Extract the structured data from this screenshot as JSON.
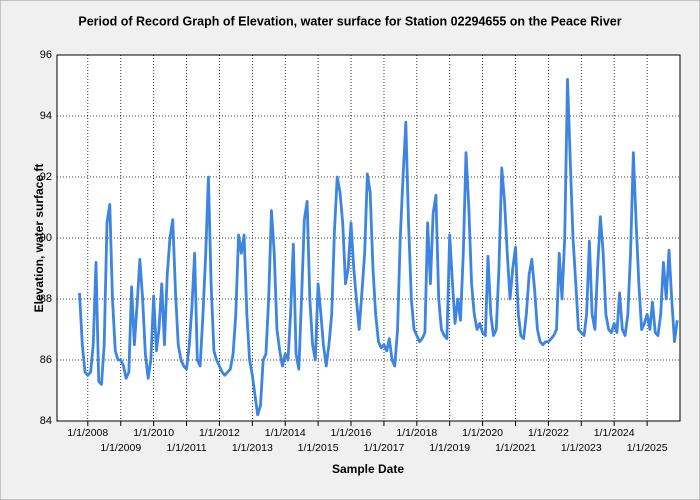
{
  "chart_data": {
    "type": "line",
    "title": "Period of Record Graph of Elevation, water surface for Station 02294655 on the Peace River",
    "xlabel": "Sample Date",
    "ylabel": "Elevation, water surface ft",
    "color": "#3d85e0",
    "grid": true,
    "ylim": [
      84,
      96
    ],
    "yticks": [
      84,
      86,
      88,
      90,
      92,
      94,
      96
    ],
    "xlim": [
      "2007-01-24",
      "2026-01-01"
    ],
    "xticks": [
      {
        "value": "2008-01-01",
        "label": "1/1/2008"
      },
      {
        "value": "2009-01-01",
        "label": "1/1/2009"
      },
      {
        "value": "2010-01-01",
        "label": "1/1/2010"
      },
      {
        "value": "2011-01-01",
        "label": "1/1/2011"
      },
      {
        "value": "2012-01-01",
        "label": "1/1/2012"
      },
      {
        "value": "2013-01-01",
        "label": "1/1/2013"
      },
      {
        "value": "2014-01-01",
        "label": "1/1/2014"
      },
      {
        "value": "2015-01-01",
        "label": "1/1/2015"
      },
      {
        "value": "2016-01-01",
        "label": "1/1/2016"
      },
      {
        "value": "2017-01-01",
        "label": "1/1/2017"
      },
      {
        "value": "2018-01-01",
        "label": "1/1/2018"
      },
      {
        "value": "2019-01-01",
        "label": "1/1/2019"
      },
      {
        "value": "2020-01-01",
        "label": "1/1/2020"
      },
      {
        "value": "2021-01-01",
        "label": "1/1/2021"
      },
      {
        "value": "2022-01-01",
        "label": "1/1/2022"
      },
      {
        "value": "2023-01-01",
        "label": "1/1/2023"
      },
      {
        "value": "2024-01-01",
        "label": "1/1/2024"
      },
      {
        "value": "2025-01-01",
        "label": "1/1/2025"
      }
    ],
    "x": [
      "2007-10-01",
      "2007-11-01",
      "2007-12-01",
      "2008-01-01",
      "2008-02-01",
      "2008-03-01",
      "2008-04-01",
      "2008-05-01",
      "2008-06-01",
      "2008-07-01",
      "2008-08-01",
      "2008-09-01",
      "2008-10-01",
      "2008-11-01",
      "2008-12-01",
      "2009-01-01",
      "2009-02-01",
      "2009-03-01",
      "2009-04-01",
      "2009-05-01",
      "2009-06-01",
      "2009-07-01",
      "2009-08-01",
      "2009-09-01",
      "2009-10-01",
      "2009-11-01",
      "2009-12-01",
      "2010-01-01",
      "2010-02-01",
      "2010-03-01",
      "2010-04-01",
      "2010-05-01",
      "2010-06-01",
      "2010-07-01",
      "2010-08-01",
      "2010-09-01",
      "2010-10-01",
      "2010-11-01",
      "2010-12-01",
      "2011-01-01",
      "2011-02-01",
      "2011-03-01",
      "2011-04-01",
      "2011-05-01",
      "2011-06-01",
      "2011-07-01",
      "2011-08-01",
      "2011-09-01",
      "2011-10-01",
      "2011-11-01",
      "2011-12-01",
      "2012-01-01",
      "2012-02-01",
      "2012-03-01",
      "2012-04-01",
      "2012-05-01",
      "2012-06-01",
      "2012-07-01",
      "2012-08-01",
      "2012-09-01",
      "2012-10-01",
      "2012-11-01",
      "2012-12-01",
      "2013-01-01",
      "2013-02-01",
      "2013-03-01",
      "2013-04-01",
      "2013-05-01",
      "2013-06-01",
      "2013-07-01",
      "2013-08-01",
      "2013-09-01",
      "2013-10-01",
      "2013-11-01",
      "2013-12-01",
      "2014-01-01",
      "2014-02-01",
      "2014-03-01",
      "2014-04-01",
      "2014-05-01",
      "2014-06-01",
      "2014-07-01",
      "2014-08-01",
      "2014-09-01",
      "2014-10-01",
      "2014-11-01",
      "2014-12-01",
      "2015-01-01",
      "2015-02-01",
      "2015-03-01",
      "2015-04-01",
      "2015-05-01",
      "2015-06-01",
      "2015-07-01",
      "2015-08-01",
      "2015-09-01",
      "2015-10-01",
      "2015-11-01",
      "2015-12-01",
      "2016-01-01",
      "2016-02-01",
      "2016-03-01",
      "2016-04-01",
      "2016-05-01",
      "2016-06-01",
      "2016-07-01",
      "2016-08-01",
      "2016-09-01",
      "2016-10-01",
      "2016-11-01",
      "2016-12-01",
      "2017-01-01",
      "2017-02-01",
      "2017-03-01",
      "2017-04-01",
      "2017-05-01",
      "2017-06-01",
      "2017-07-01",
      "2017-08-01",
      "2017-09-01",
      "2017-10-01",
      "2017-11-01",
      "2017-12-01",
      "2018-01-01",
      "2018-02-01",
      "2018-03-01",
      "2018-04-01",
      "2018-05-01",
      "2018-06-01",
      "2018-07-01",
      "2018-08-01",
      "2018-09-01",
      "2018-10-01",
      "2018-11-01",
      "2018-12-01",
      "2019-01-01",
      "2019-02-01",
      "2019-03-01",
      "2019-04-01",
      "2019-05-01",
      "2019-06-01",
      "2019-07-01",
      "2019-08-01",
      "2019-09-01",
      "2019-10-01",
      "2019-11-01",
      "2019-12-01",
      "2020-01-01",
      "2020-02-01",
      "2020-03-01",
      "2020-04-01",
      "2020-05-01",
      "2020-06-01",
      "2020-07-01",
      "2020-08-01",
      "2020-09-01",
      "2020-10-01",
      "2020-11-01",
      "2020-12-01",
      "2021-01-01",
      "2021-02-01",
      "2021-03-01",
      "2021-04-01",
      "2021-05-01",
      "2021-06-01",
      "2021-07-01",
      "2021-08-01",
      "2021-09-01",
      "2021-10-01",
      "2021-11-01",
      "2021-12-01",
      "2022-01-01",
      "2022-02-01",
      "2022-03-01",
      "2022-04-01",
      "2022-05-01",
      "2022-06-01",
      "2022-07-01",
      "2022-08-01",
      "2022-09-01",
      "2022-10-01",
      "2022-11-01",
      "2022-12-01",
      "2023-01-01",
      "2023-02-01",
      "2023-03-01",
      "2023-04-01",
      "2023-05-01",
      "2023-06-01",
      "2023-07-01",
      "2023-08-01",
      "2023-09-01",
      "2023-10-01",
      "2023-11-01",
      "2023-12-01",
      "2024-01-01",
      "2024-02-01",
      "2024-03-01",
      "2024-04-01",
      "2024-05-01",
      "2024-06-01",
      "2024-07-01",
      "2024-08-01",
      "2024-09-01",
      "2024-10-01",
      "2024-11-01",
      "2024-12-01",
      "2025-01-01",
      "2025-02-01",
      "2025-03-01",
      "2025-04-01",
      "2025-05-01",
      "2025-06-01",
      "2025-07-01",
      "2025-08-01",
      "2025-09-01",
      "2025-10-01",
      "2025-11-01",
      "2025-12-01"
    ],
    "values": [
      88.2,
      86.5,
      85.6,
      85.5,
      85.6,
      86.5,
      89.2,
      85.3,
      85.2,
      86.5,
      90.5,
      91.1,
      88,
      86.3,
      86,
      86,
      85.8,
      85.4,
      85.6,
      88.4,
      86.5,
      87.8,
      89.3,
      88,
      86.2,
      85.4,
      86,
      88.1,
      86.3,
      87,
      88.5,
      86.5,
      88.8,
      90,
      90.6,
      88.2,
      86.5,
      86,
      85.8,
      85.7,
      86.5,
      87.7,
      89.5,
      86,
      85.8,
      87.4,
      89.4,
      92,
      88.5,
      86.3,
      86,
      85.8,
      85.6,
      85.5,
      85.6,
      85.7,
      86.2,
      87.5,
      90.1,
      89.5,
      90.1,
      87.5,
      86,
      85.5,
      84.8,
      84.2,
      84.5,
      86,
      86.2,
      88,
      90.9,
      89.5,
      87,
      86.3,
      85.8,
      86.2,
      86,
      87.5,
      89.8,
      86.2,
      85.7,
      88,
      90.6,
      91.2,
      88,
      86.5,
      86,
      88.5,
      87.5,
      86.5,
      85.8,
      86.5,
      87.5,
      90.2,
      92,
      91.5,
      90.5,
      88.5,
      89,
      90.5,
      89,
      88,
      87,
      88.2,
      89.5,
      92.1,
      91.5,
      89,
      87.5,
      86.6,
      86.4,
      86.5,
      86.3,
      86.7,
      86,
      85.8,
      87,
      90,
      92,
      93.8,
      90.5,
      88,
      87,
      86.8,
      86.6,
      86.7,
      86.9,
      90.5,
      88.5,
      90.8,
      91.4,
      88,
      87,
      86.8,
      86.7,
      90.1,
      88.5,
      87.2,
      88,
      87.3,
      89.5,
      92.8,
      91,
      88.5,
      87.5,
      87,
      87.2,
      86.9,
      86.8,
      89.4,
      87.5,
      86.8,
      87,
      89,
      92.3,
      91.2,
      89.5,
      88,
      89,
      89.7,
      87.5,
      86.8,
      86.7,
      87.5,
      88.8,
      89.3,
      88.3,
      87,
      86.6,
      86.5,
      86.6,
      86.6,
      86.7,
      86.8,
      87,
      89.5,
      88,
      90,
      95.2,
      92.5,
      90,
      88.5,
      87,
      86.9,
      86.8,
      87.5,
      89.9,
      87.5,
      87,
      89,
      90.7,
      89.5,
      87.5,
      87,
      86.9,
      87.2,
      86.9,
      88.2,
      87,
      86.8,
      87.5,
      89.5,
      92.8,
      90.5,
      88.5,
      87,
      87.2,
      87.5,
      87,
      87.9,
      86.9,
      86.8,
      87.5,
      89.2,
      88,
      89.6,
      88,
      86.6,
      87.3
    ]
  }
}
